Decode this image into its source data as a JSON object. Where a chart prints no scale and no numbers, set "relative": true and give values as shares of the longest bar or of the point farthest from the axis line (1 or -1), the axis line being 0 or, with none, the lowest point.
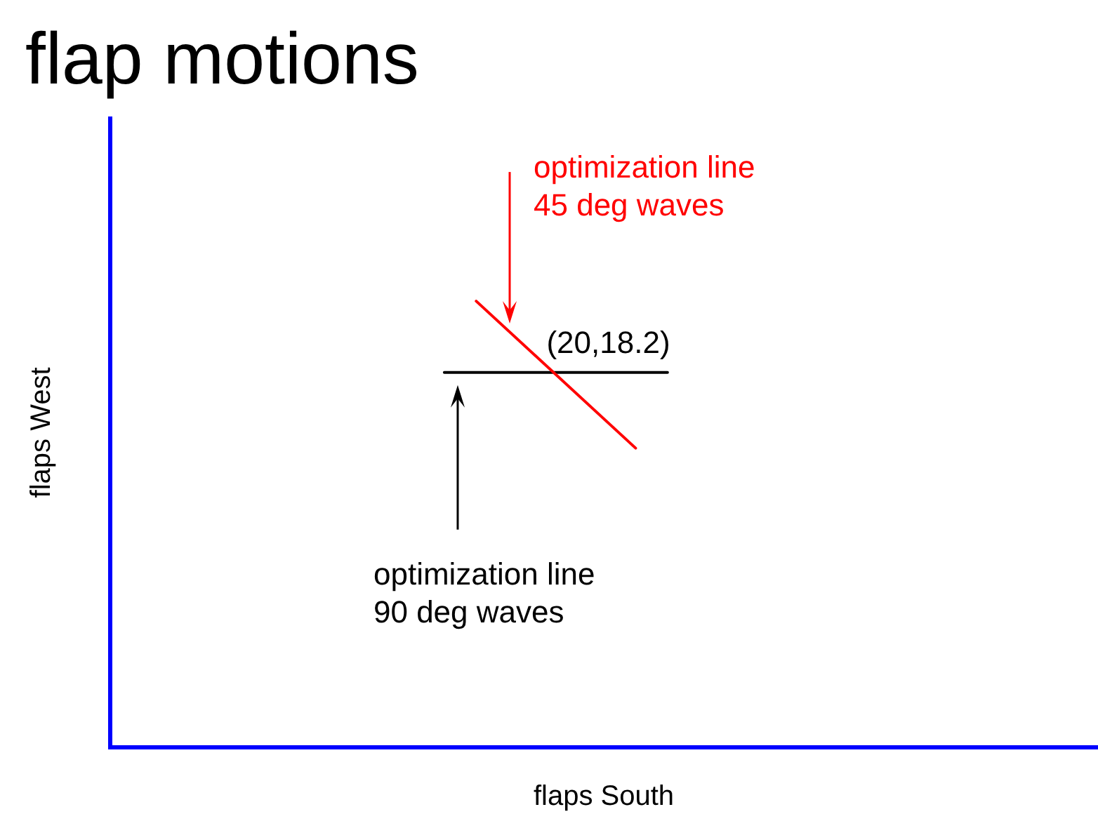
{
  "chart_data": {
    "type": "line",
    "title": "flap motions",
    "xlabel": "flaps South",
    "ylabel": "flaps West",
    "relative": true,
    "categories": [
      null,
      null,
      null,
      null,
      null,
      null,
      null,
      null,
      null,
      null,
      null,
      null,
      null,
      null,
      null,
      null,
      null,
      null,
      null,
      null,
      null,
      null,
      null,
      null,
      null,
      null,
      null,
      null,
      null,
      null,
      null,
      null,
      null,
      null,
      null,
      null,
      null,
      null,
      null,
      null,
      null,
      null,
      null,
      null,
      null,
      null,
      null,
      null,
      null,
      null,
      null,
      null,
      null,
      null,
      null,
      null,
      null,
      null,
      null,
      null,
      null,
      null,
      null
    ],
    "series": [
      {
        "name": "optimization line\n45 deg waves",
        "color": "#ff0000",
        "values": [
          null,
          null,
          null,
          null,
          null,
          null,
          null,
          null,
          null,
          null,
          null,
          null,
          null,
          null,
          null,
          null,
          null,
          null,
          null,
          null,
          null,
          null,
          null,
          1,
          null,
          null,
          null,
          null,
          null,
          null,
          null,
          null,
          null,
          0.67,
          null,
          null,
          null,
          null,
          null,
          null,
          null,
          null,
          null,
          null,
          null,
          null,
          null,
          null,
          null,
          null,
          null,
          null,
          null,
          null,
          null,
          null,
          null,
          null,
          null,
          null,
          null,
          null,
          null
        ]
      },
      {
        "name": "optimization line\n90 deg waves",
        "color": "#000000",
        "values": [
          null,
          null,
          null,
          null,
          null,
          null,
          null,
          null,
          null,
          null,
          null,
          null,
          null,
          null,
          null,
          null,
          null,
          null,
          null,
          null,
          null,
          0.84,
          null,
          null,
          null,
          null,
          null,
          null,
          null,
          null,
          null,
          null,
          null,
          null,
          null,
          0.84,
          null,
          null,
          null,
          null,
          null,
          null,
          null,
          null,
          null,
          null,
          null,
          null,
          null,
          null,
          null,
          null,
          null,
          null,
          null,
          null,
          null,
          null,
          null,
          null,
          null,
          null,
          null
        ]
      }
    ],
    "annotations": [
      "(20,18.2)"
    ],
    "marker": "none",
    "line_style": "solid"
  }
}
